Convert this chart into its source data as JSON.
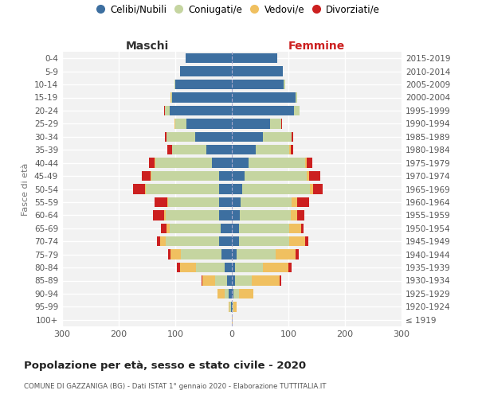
{
  "age_groups": [
    "100+",
    "95-99",
    "90-94",
    "85-89",
    "80-84",
    "75-79",
    "70-74",
    "65-69",
    "60-64",
    "55-59",
    "50-54",
    "45-49",
    "40-44",
    "35-39",
    "30-34",
    "25-29",
    "20-24",
    "15-19",
    "10-14",
    "5-9",
    "0-4"
  ],
  "birth_years": [
    "≤ 1919",
    "1920-1924",
    "1925-1929",
    "1930-1934",
    "1935-1939",
    "1940-1944",
    "1945-1949",
    "1950-1954",
    "1955-1959",
    "1960-1964",
    "1965-1969",
    "1970-1974",
    "1975-1979",
    "1980-1984",
    "1985-1989",
    "1990-1994",
    "1995-1999",
    "2000-2004",
    "2005-2009",
    "2010-2014",
    "2015-2019"
  ],
  "colors": {
    "celibi": "#3d6fa0",
    "coniugati": "#c5d5a0",
    "vedovi": "#f0c060",
    "divorziati": "#cc2020",
    "bg": "#f2f2f2"
  },
  "maschi": {
    "celibi": [
      0,
      2,
      5,
      8,
      12,
      18,
      22,
      20,
      22,
      22,
      22,
      22,
      35,
      45,
      65,
      80,
      110,
      105,
      100,
      92,
      82
    ],
    "coniugati": [
      0,
      2,
      8,
      22,
      52,
      72,
      95,
      90,
      95,
      90,
      130,
      120,
      100,
      60,
      50,
      20,
      8,
      2,
      2,
      0,
      0
    ],
    "vedovi": [
      0,
      2,
      12,
      22,
      28,
      18,
      10,
      5,
      3,
      2,
      2,
      2,
      2,
      1,
      1,
      1,
      1,
      1,
      0,
      0,
      0
    ],
    "divorziati": [
      0,
      0,
      0,
      2,
      5,
      5,
      5,
      10,
      20,
      22,
      20,
      15,
      10,
      8,
      3,
      1,
      1,
      0,
      0,
      0,
      0
    ]
  },
  "femmine": {
    "celibi": [
      0,
      1,
      3,
      5,
      5,
      8,
      12,
      12,
      14,
      16,
      18,
      22,
      30,
      42,
      55,
      68,
      110,
      112,
      92,
      90,
      80
    ],
    "coniugati": [
      0,
      2,
      10,
      30,
      50,
      70,
      90,
      90,
      90,
      90,
      120,
      110,
      100,
      60,
      50,
      20,
      10,
      3,
      3,
      0,
      0
    ],
    "vedovi": [
      2,
      5,
      25,
      50,
      45,
      35,
      28,
      20,
      12,
      10,
      5,
      5,
      2,
      2,
      1,
      0,
      0,
      0,
      0,
      0,
      0
    ],
    "divorziati": [
      0,
      0,
      0,
      2,
      5,
      5,
      5,
      5,
      12,
      20,
      18,
      20,
      10,
      5,
      2,
      1,
      0,
      0,
      0,
      0,
      0
    ]
  },
  "xlim": 300,
  "title": "Popolazione per età, sesso e stato civile - 2020",
  "subtitle": "COMUNE DI GAZZANIGA (BG) - Dati ISTAT 1° gennaio 2020 - Elaborazione TUTTITALIA.IT",
  "xlabel_left": "Maschi",
  "xlabel_right": "Femmine",
  "ylabel_left": "Fasce di età"
}
